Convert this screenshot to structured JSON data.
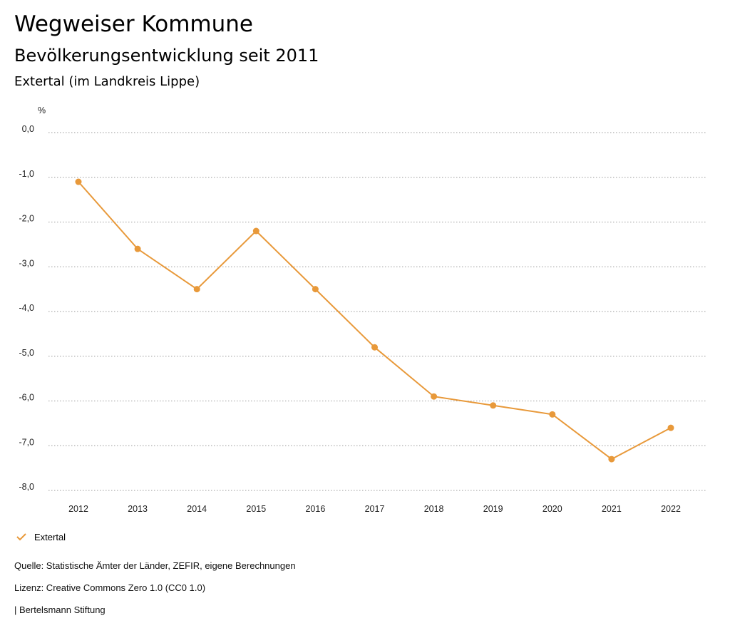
{
  "header": {
    "title": "Wegweiser Kommune",
    "subtitle": "Bevölkerungsentwicklung seit 2011",
    "region": "Extertal (im Landkreis Lippe)"
  },
  "chart_data": {
    "type": "line",
    "unit_label": "%",
    "x": [
      "2012",
      "2013",
      "2014",
      "2015",
      "2016",
      "2017",
      "2018",
      "2019",
      "2020",
      "2021",
      "2022"
    ],
    "series": [
      {
        "name": "Extertal",
        "color": "#e8993a",
        "values": [
          -1.1,
          -2.6,
          -3.5,
          -2.2,
          -3.5,
          -4.8,
          -5.9,
          -6.1,
          -6.3,
          -7.3,
          -6.6
        ]
      }
    ],
    "ylim": [
      -8,
      0
    ],
    "y_ticks": [
      {
        "value": 0,
        "label": "0,0"
      },
      {
        "value": -1,
        "label": "-1,0"
      },
      {
        "value": -2,
        "label": "-2,0"
      },
      {
        "value": -3,
        "label": "-3,0"
      },
      {
        "value": -4,
        "label": "-4,0"
      },
      {
        "value": -5,
        "label": "-5,0"
      },
      {
        "value": -6,
        "label": "-6,0"
      },
      {
        "value": -7,
        "label": "-7,0"
      },
      {
        "value": -8,
        "label": "-8,0"
      }
    ],
    "grid": "horizontal-dotted",
    "legend_position": "bottom-left"
  },
  "legend": {
    "label": "Extertal",
    "icon": "check-icon"
  },
  "footer": {
    "source": "Quelle: Statistische Ämter der Länder, ZEFIR, eigene Berechnungen",
    "license": "Lizenz: Creative Commons Zero 1.0 (CC0 1.0)",
    "publisher": "| Bertelsmann Stiftung"
  }
}
